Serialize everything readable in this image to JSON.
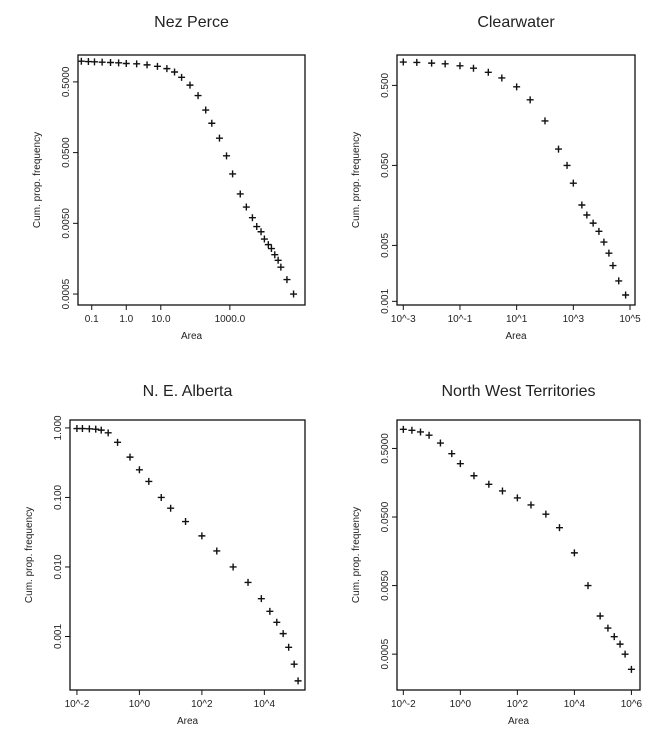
{
  "chart_data": [
    {
      "type": "scatter",
      "title": "Nez Perce",
      "xlabel": "Area",
      "ylabel": "Cum. prop. frequency",
      "xscale": "log",
      "yscale": "log",
      "xlim": [
        0.04,
        150000
      ],
      "ylim": [
        0.00035,
        1.2
      ],
      "xticks": [
        0.1,
        1,
        10,
        1000
      ],
      "xtick_labels": [
        "0.1",
        "1.0",
        "10.0",
        "1000.0"
      ],
      "yticks": [
        0.5,
        0.05,
        0.005,
        0.0005
      ],
      "ytick_labels": [
        "0.5000",
        "0.0500",
        "0.0050",
        "0.0005"
      ],
      "series": [
        {
          "x": [
            0.05,
            0.08,
            0.12,
            0.2,
            0.35,
            0.6,
            1,
            2,
            4,
            8,
            15,
            25,
            40,
            70,
            120,
            200,
            300,
            500,
            800,
            1200,
            2000,
            3000,
            4500,
            6000,
            8000,
            10000,
            13000,
            16000,
            20000,
            25000,
            30000,
            45000,
            70000
          ],
          "y": [
            0.98,
            0.97,
            0.96,
            0.95,
            0.94,
            0.93,
            0.91,
            0.9,
            0.87,
            0.83,
            0.77,
            0.69,
            0.58,
            0.45,
            0.32,
            0.2,
            0.13,
            0.08,
            0.045,
            0.025,
            0.013,
            0.0085,
            0.006,
            0.0045,
            0.0038,
            0.003,
            0.0025,
            0.0022,
            0.0018,
            0.0015,
            0.0012,
            0.0008,
            0.0005
          ]
        }
      ]
    },
    {
      "type": "scatter",
      "title": "Clearwater",
      "xlabel": "Area",
      "ylabel": "Cum. prop. frequency",
      "xscale": "log",
      "yscale": "log",
      "xlim": [
        0.0006,
        150000
      ],
      "ylim": [
        0.0009,
        1.2
      ],
      "xticks": [
        0.001,
        0.1,
        10,
        1000,
        100000
      ],
      "xtick_labels": [
        "10^-3",
        "10^-1",
        "10^1",
        "10^3",
        "10^5"
      ],
      "yticks": [
        0.5,
        0.05,
        0.005,
        0.001
      ],
      "ytick_labels": [
        "0.500",
        "0.050",
        "0.005",
        "0.001"
      ],
      "series": [
        {
          "x": [
            0.001,
            0.003,
            0.01,
            0.03,
            0.1,
            0.3,
            1,
            3,
            10,
            30,
            100,
            300,
            600,
            1000,
            2000,
            3000,
            5000,
            8000,
            12000,
            18000,
            25000,
            40000,
            70000
          ],
          "y": [
            0.98,
            0.97,
            0.95,
            0.93,
            0.88,
            0.82,
            0.73,
            0.62,
            0.48,
            0.33,
            0.18,
            0.08,
            0.05,
            0.03,
            0.016,
            0.012,
            0.0095,
            0.0075,
            0.0055,
            0.004,
            0.0028,
            0.0018,
            0.0012
          ]
        }
      ]
    },
    {
      "type": "scatter",
      "title": "N. E. Alberta",
      "xlabel": "Area",
      "ylabel": "Cum. prop. frequency",
      "xscale": "log",
      "yscale": "log",
      "xlim": [
        0.006,
        200000
      ],
      "ylim": [
        0.00017,
        1.3
      ],
      "xticks": [
        0.01,
        1,
        100,
        10000
      ],
      "xtick_labels": [
        "10^-2",
        "10^0",
        "10^2",
        "10^4"
      ],
      "yticks": [
        1,
        0.1,
        0.01,
        0.001
      ],
      "ytick_labels": [
        "1.000",
        "0.100",
        "0.010",
        "0.001"
      ],
      "series": [
        {
          "x": [
            0.01,
            0.015,
            0.025,
            0.04,
            0.06,
            0.1,
            0.2,
            0.5,
            1,
            2,
            5,
            10,
            30,
            100,
            300,
            1000,
            3000,
            8000,
            15000,
            25000,
            40000,
            60000,
            90000,
            120000
          ],
          "y": [
            0.98,
            0.98,
            0.97,
            0.96,
            0.93,
            0.85,
            0.62,
            0.38,
            0.25,
            0.17,
            0.1,
            0.07,
            0.045,
            0.028,
            0.017,
            0.01,
            0.006,
            0.0035,
            0.0023,
            0.0016,
            0.0011,
            0.0007,
            0.0004,
            0.00023
          ]
        }
      ]
    },
    {
      "type": "scatter",
      "title": "North West Territories",
      "xlabel": "Area",
      "ylabel": "Cum. prop. frequency",
      "xscale": "log",
      "yscale": "log",
      "xlim": [
        0.006,
        2000000
      ],
      "ylim": [
        0.00015,
        1.3
      ],
      "xticks": [
        0.01,
        1,
        100,
        10000,
        1000000
      ],
      "xtick_labels": [
        "10^-2",
        "10^0",
        "10^2",
        "10^4",
        "10^6"
      ],
      "yticks": [
        0.5,
        0.05,
        0.005,
        0.0005
      ],
      "ytick_labels": [
        "0.5000",
        "0.0500",
        "0.0050",
        "0.0005"
      ],
      "series": [
        {
          "x": [
            0.01,
            0.02,
            0.04,
            0.08,
            0.2,
            0.5,
            1,
            3,
            10,
            30,
            100,
            300,
            1000,
            3000,
            10000,
            30000,
            80000,
            150000,
            250000,
            400000,
            600000,
            1000000
          ],
          "y": [
            0.95,
            0.92,
            0.87,
            0.78,
            0.6,
            0.42,
            0.3,
            0.2,
            0.15,
            0.12,
            0.095,
            0.075,
            0.055,
            0.035,
            0.015,
            0.005,
            0.0018,
            0.0012,
            0.0009,
            0.0007,
            0.0005,
            0.0003
          ]
        }
      ]
    }
  ]
}
